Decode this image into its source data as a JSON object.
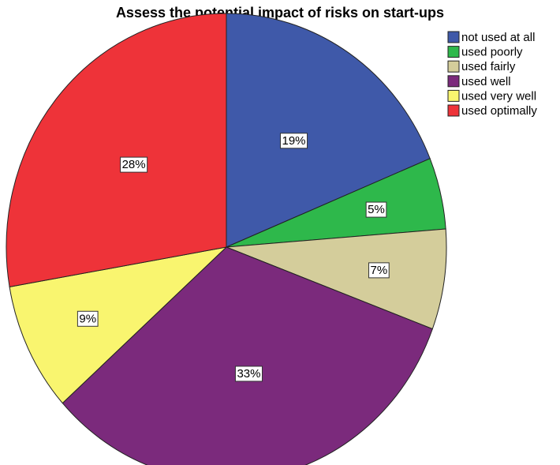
{
  "chart_data": {
    "type": "pie",
    "title": "Assess the potential impact of risks on start-ups",
    "categories": [
      "not used at all",
      "used poorly",
      "used fairly",
      "used well",
      "used very well",
      "used optimally"
    ],
    "values": [
      19,
      5,
      7,
      33,
      9,
      28
    ],
    "value_labels": [
      "19%",
      "5%",
      "7%",
      "33%",
      "9%",
      "28%"
    ],
    "colors": [
      "#3f59a9",
      "#2eb84b",
      "#d4cd9b",
      "#7b2a7c",
      "#f9f56f",
      "#ee3339"
    ],
    "legend": "upper right"
  }
}
